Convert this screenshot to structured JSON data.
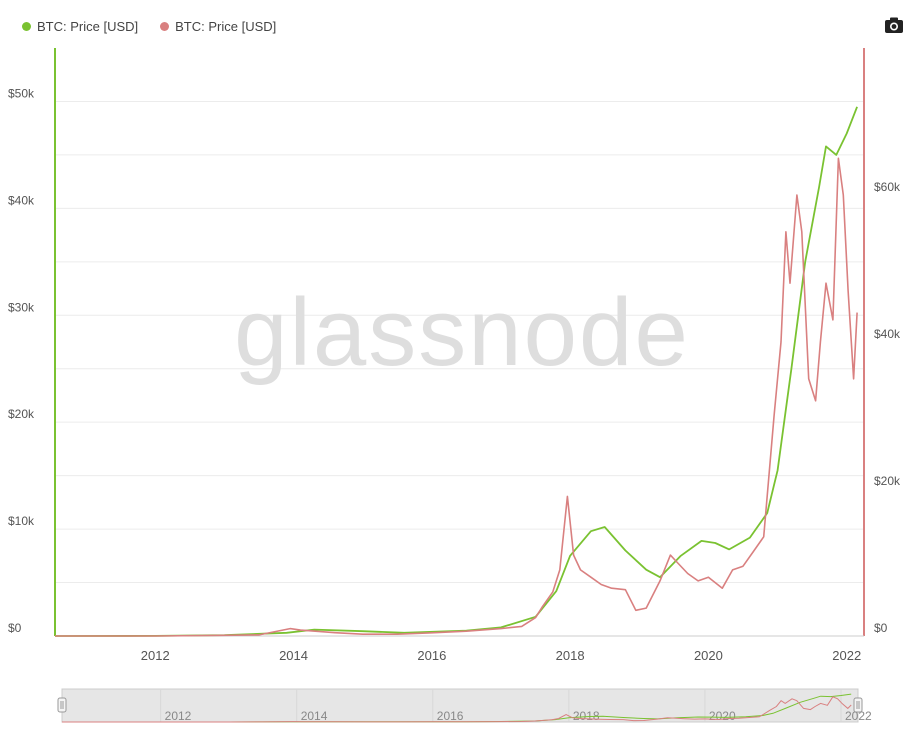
{
  "legend": {
    "series1_label": "BTC: Price [USD]",
    "series2_label": "BTC: Price [USD]"
  },
  "toolbar": {
    "camera_icon": "camera-icon"
  },
  "watermark": "glassnode",
  "colors": {
    "green": "#7ac231",
    "red": "#d98080",
    "grid": "#ececec",
    "navigator_fill": "#e6e6e6"
  },
  "chart_data": {
    "type": "line",
    "title": "",
    "xlabel": "",
    "ylabel": "",
    "x_ticks": [
      "2012",
      "2014",
      "2016",
      "2018",
      "2020",
      "2022"
    ],
    "y_left_ticks": [
      "$0",
      "$10k",
      "$20k",
      "$30k",
      "$40k",
      "$50k"
    ],
    "y_right_ticks": [
      "$0",
      "$20k",
      "$40k",
      "$60k"
    ],
    "y_left_range": [
      0,
      55000
    ],
    "y_right_range": [
      0,
      80000
    ],
    "x_range": [
      2010.55,
      2022.25
    ],
    "navigator_ticks": [
      "2012",
      "2014",
      "2016",
      "2018",
      "2020",
      "2022"
    ],
    "series": [
      {
        "name": "BTC: Price [USD]",
        "axis": "left",
        "color": "#7ac231",
        "x": [
          2010.55,
          2012.0,
          2013.0,
          2013.9,
          2014.3,
          2015.0,
          2015.6,
          2016.5,
          2017.0,
          2017.5,
          2017.8,
          2018.0,
          2018.3,
          2018.5,
          2018.8,
          2019.1,
          2019.3,
          2019.6,
          2019.9,
          2020.1,
          2020.3,
          2020.6,
          2020.85,
          2021.0,
          2021.2,
          2021.4,
          2021.6,
          2021.7,
          2021.85,
          2022.0,
          2022.15
        ],
        "y": [
          0,
          10,
          80,
          300,
          600,
          450,
          300,
          500,
          800,
          1800,
          4200,
          7500,
          9800,
          10200,
          8000,
          6200,
          5500,
          7500,
          8900,
          8700,
          8100,
          9200,
          11500,
          15500,
          25000,
          35000,
          42000,
          45800,
          45000,
          47000,
          49500
        ]
      },
      {
        "name": "BTC: Price [USD]",
        "axis": "right",
        "color": "#d98080",
        "x": [
          2010.55,
          2012.0,
          2013.0,
          2013.5,
          2013.95,
          2014.1,
          2014.6,
          2015.0,
          2015.5,
          2016.0,
          2016.5,
          2017.0,
          2017.3,
          2017.5,
          2017.6,
          2017.75,
          2017.85,
          2017.96,
          2018.05,
          2018.15,
          2018.3,
          2018.45,
          2018.6,
          2018.8,
          2018.95,
          2019.1,
          2019.3,
          2019.45,
          2019.55,
          2019.7,
          2019.85,
          2020.0,
          2020.2,
          2020.35,
          2020.5,
          2020.65,
          2020.8,
          2020.95,
          2021.05,
          2021.12,
          2021.18,
          2021.28,
          2021.35,
          2021.45,
          2021.55,
          2021.62,
          2021.7,
          2021.8,
          2021.88,
          2021.95,
          2022.02,
          2022.1,
          2022.15
        ],
        "y": [
          0,
          5,
          100,
          150,
          1000,
          800,
          450,
          250,
          250,
          430,
          650,
          1000,
          1300,
          2500,
          4000,
          6000,
          9000,
          19000,
          11000,
          9000,
          8000,
          7000,
          6500,
          6300,
          3500,
          3800,
          7500,
          11000,
          10000,
          8500,
          7500,
          8000,
          6500,
          9000,
          9500,
          11500,
          13500,
          30000,
          40000,
          55000,
          48000,
          60000,
          55000,
          35000,
          32000,
          40000,
          48000,
          43000,
          65000,
          60000,
          47000,
          35000,
          44000
        ]
      }
    ]
  }
}
